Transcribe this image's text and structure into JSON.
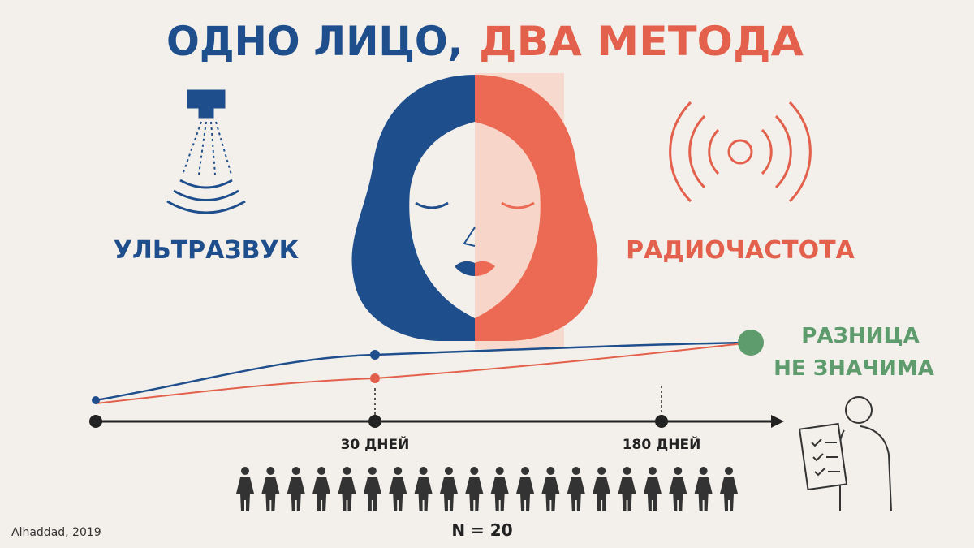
{
  "title": {
    "part1": "ОДНО ЛИЦО,",
    "part2": "ДВА МЕТОДА"
  },
  "methods": {
    "left": "УЛЬТРАЗВУК",
    "right": "РАДИОЧАСТОТА"
  },
  "result": {
    "line1": "РАЗНИЦА",
    "line2": "НЕ ЗНАЧИМА"
  },
  "timeline": {
    "labels": [
      "30 ДНЕЙ",
      "180 ДНЕЙ"
    ]
  },
  "sample": {
    "value": 20,
    "label": "N = 20"
  },
  "source": "Alhaddad, 2019"
}
